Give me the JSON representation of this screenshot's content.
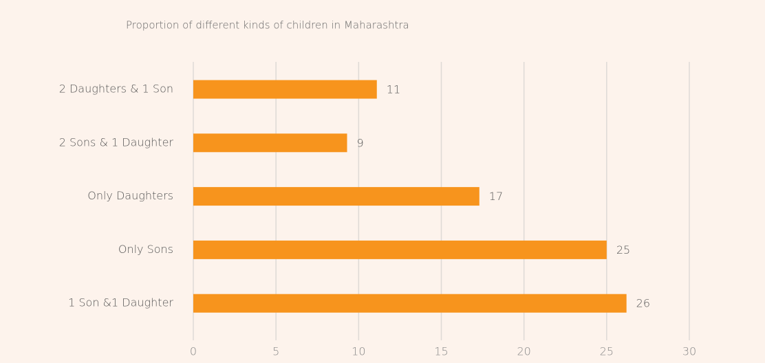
{
  "chart_data": {
    "type": "hbar",
    "title": "Proportion of different kinds of children in Maharashtra",
    "categories": [
      "2 Daughters & 1 Son",
      "2 Sons & 1 Daughter",
      "Only Daughters",
      "Only Sons",
      "1 Son &1 Daughter"
    ],
    "values": [
      11.1,
      9.3,
      17.3,
      25,
      26.2
    ],
    "value_labels": [
      "11",
      "9",
      "17",
      "25",
      "26"
    ],
    "color": "#f7941d",
    "xlim": [
      0,
      30
    ],
    "xticks": [
      0,
      5,
      10,
      15,
      20,
      25,
      30
    ],
    "grid": true
  }
}
